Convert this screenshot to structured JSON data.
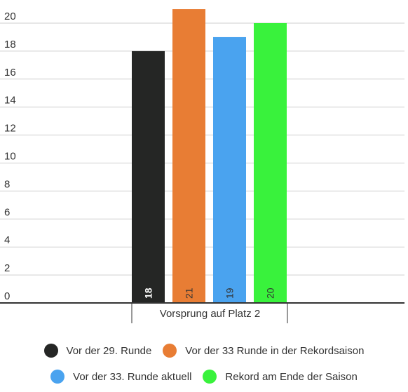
{
  "chart_data": {
    "type": "bar",
    "title": "",
    "xlabel": "",
    "ylabel": "",
    "categories": [
      "Vorsprung auf Platz 2"
    ],
    "series": [
      {
        "name": "Vor der 29. Runde",
        "values": [
          18
        ],
        "color": "#252625",
        "label_color": "#ffffff"
      },
      {
        "name": "Vor der 33 Runde in der Rekordsaison",
        "values": [
          21
        ],
        "color": "#e87d34",
        "label_color": "#333333"
      },
      {
        "name": "Vor der 33. Runde aktuell",
        "values": [
          19
        ],
        "color": "#4aa3ef",
        "label_color": "#333333"
      },
      {
        "name": "Rekord am Ende der Saison",
        "values": [
          20
        ],
        "color": "#39f23c",
        "label_color": "#333333"
      }
    ],
    "ylim": [
      0,
      20
    ],
    "yticks": [
      0,
      2,
      4,
      6,
      8,
      10,
      12,
      14,
      16,
      18,
      20
    ],
    "grid": true,
    "legend_position": "bottom"
  }
}
